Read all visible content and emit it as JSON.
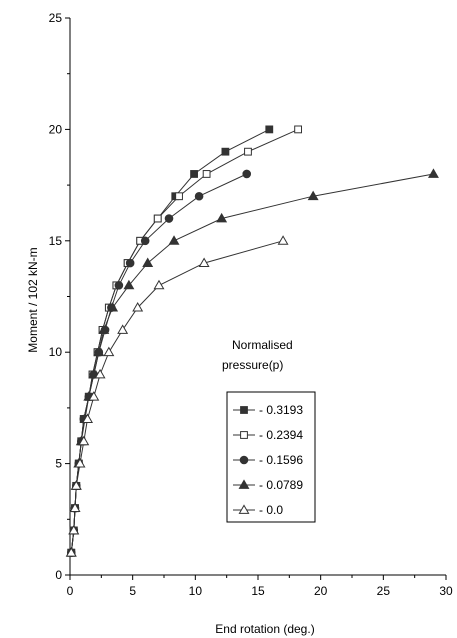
{
  "chart_data": {
    "type": "line",
    "xlabel": "End rotation (deg.)",
    "ylabel": "Moment / 102 kN-m",
    "xlim": [
      0,
      30
    ],
    "ylim": [
      0,
      25
    ],
    "xticks": [
      0,
      5,
      10,
      15,
      20,
      25,
      30
    ],
    "yticks": [
      0,
      5,
      10,
      15,
      20,
      25
    ],
    "grid": false,
    "legend": {
      "title_line1": "Normalised",
      "title_line2": "pressure(p)",
      "placement": "right-middle"
    },
    "series": [
      {
        "name": "0.3193",
        "marker": "square-filled",
        "points": [
          [
            0.1,
            1
          ],
          [
            0.3,
            2
          ],
          [
            0.4,
            3
          ],
          [
            0.5,
            4
          ],
          [
            0.7,
            5
          ],
          [
            0.9,
            6
          ],
          [
            1.1,
            7
          ],
          [
            1.5,
            8
          ],
          [
            1.8,
            9
          ],
          [
            2.2,
            10
          ],
          [
            2.6,
            11
          ],
          [
            3.1,
            12
          ],
          [
            3.7,
            13
          ],
          [
            4.6,
            14
          ],
          [
            5.6,
            15
          ],
          [
            7.0,
            16
          ],
          [
            8.4,
            17
          ],
          [
            9.9,
            18
          ],
          [
            12.4,
            19
          ],
          [
            15.9,
            20
          ]
        ],
        "color": "#333333"
      },
      {
        "name": "0.2394",
        "marker": "square-open",
        "points": [
          [
            0.1,
            1
          ],
          [
            0.3,
            2
          ],
          [
            0.4,
            3
          ],
          [
            0.5,
            4
          ],
          [
            0.7,
            5
          ],
          [
            0.9,
            6
          ],
          [
            1.1,
            7
          ],
          [
            1.5,
            8
          ],
          [
            1.8,
            9
          ],
          [
            2.2,
            10
          ],
          [
            2.6,
            11
          ],
          [
            3.1,
            12
          ],
          [
            3.7,
            13
          ],
          [
            4.6,
            14
          ],
          [
            5.6,
            15
          ],
          [
            7.0,
            16
          ],
          [
            8.7,
            17
          ],
          [
            10.9,
            18
          ],
          [
            14.2,
            19
          ],
          [
            18.2,
            20
          ]
        ],
        "color": "#333333"
      },
      {
        "name": "0.1596",
        "marker": "circle-filled",
        "points": [
          [
            0.1,
            1
          ],
          [
            0.3,
            2
          ],
          [
            0.4,
            3
          ],
          [
            0.5,
            4
          ],
          [
            0.7,
            5
          ],
          [
            0.9,
            6
          ],
          [
            1.1,
            7
          ],
          [
            1.5,
            8
          ],
          [
            1.9,
            9
          ],
          [
            2.3,
            10
          ],
          [
            2.8,
            11
          ],
          [
            3.3,
            12
          ],
          [
            3.9,
            13
          ],
          [
            4.8,
            14
          ],
          [
            6.0,
            15
          ],
          [
            7.9,
            16
          ],
          [
            10.3,
            17
          ],
          [
            14.1,
            18
          ]
        ],
        "color": "#333333"
      },
      {
        "name": "0.0789",
        "marker": "triangle-filled",
        "points": [
          [
            0.1,
            1
          ],
          [
            0.3,
            2
          ],
          [
            0.4,
            3
          ],
          [
            0.5,
            4
          ],
          [
            0.7,
            5
          ],
          [
            0.9,
            6
          ],
          [
            1.2,
            7
          ],
          [
            1.5,
            8
          ],
          [
            1.9,
            9
          ],
          [
            2.3,
            10
          ],
          [
            2.7,
            11
          ],
          [
            3.4,
            12
          ],
          [
            4.7,
            13
          ],
          [
            6.2,
            14
          ],
          [
            8.3,
            15
          ],
          [
            12.1,
            16
          ],
          [
            19.4,
            17
          ],
          [
            29.0,
            18
          ]
        ],
        "color": "#333333"
      },
      {
        "name": "0.0",
        "marker": "triangle-open",
        "points": [
          [
            0.1,
            1
          ],
          [
            0.3,
            2
          ],
          [
            0.4,
            3
          ],
          [
            0.5,
            4
          ],
          [
            0.8,
            5
          ],
          [
            1.1,
            6
          ],
          [
            1.4,
            7
          ],
          [
            1.9,
            8
          ],
          [
            2.4,
            9
          ],
          [
            3.1,
            10
          ],
          [
            4.2,
            11
          ],
          [
            5.4,
            12
          ],
          [
            7.1,
            13
          ],
          [
            10.7,
            14
          ],
          [
            17.0,
            15
          ]
        ],
        "color": "#333333"
      }
    ]
  }
}
